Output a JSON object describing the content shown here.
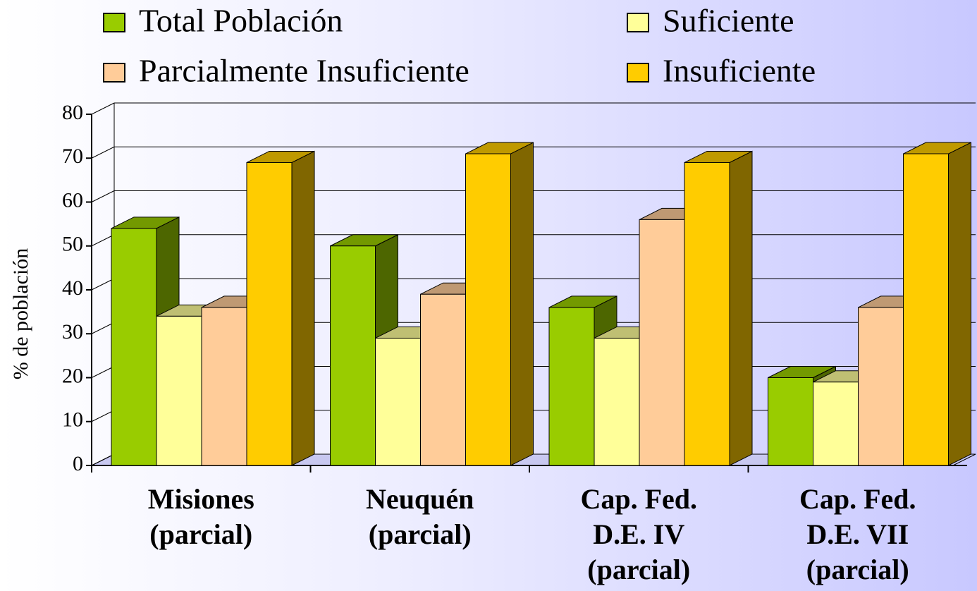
{
  "chart_data": {
    "type": "bar3d",
    "y_label": "% de población",
    "categories": [
      "Misiones\n(parcial)",
      "Neuquén\n(parcial)",
      "Cap. Fed.\nD.E. IV\n(parcial)",
      "Cap. Fed.\nD.E. VII\n(parcial)"
    ],
    "series": [
      {
        "name": "Total Población",
        "color": "#99cc00",
        "values": [
          54,
          50,
          36,
          20
        ]
      },
      {
        "name": "Suficiente",
        "color": "#ffff99",
        "values": [
          34,
          29,
          29,
          19
        ]
      },
      {
        "name": "Parcialmente Insuficiente",
        "color": "#ffcc99",
        "values": [
          36,
          39,
          56,
          36
        ]
      },
      {
        "name": "Insuficiente",
        "color": "#ffcc00",
        "values": [
          69,
          71,
          69,
          71
        ]
      }
    ],
    "ylim": [
      0,
      80
    ],
    "yticks": [
      0,
      10,
      20,
      30,
      40,
      50,
      60,
      70,
      80
    ],
    "grid": true
  }
}
